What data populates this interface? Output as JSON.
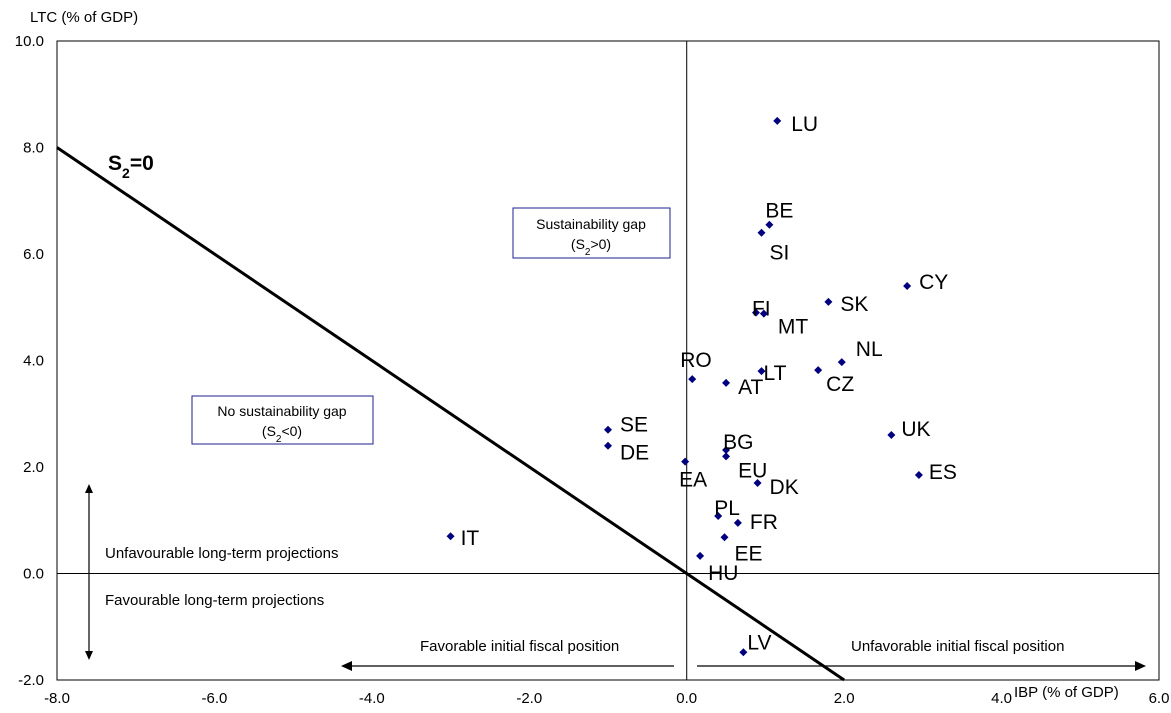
{
  "chart_data": {
    "type": "scatter",
    "xlabel": "IBP (% of GDP)",
    "ylabel": "LTC (% of GDP)",
    "xlim": [
      -8.0,
      6.0
    ],
    "ylim": [
      -2.0,
      10.0
    ],
    "xticks": [
      "-8.0",
      "-6.0",
      "-4.0",
      "-2.0",
      "0.0",
      "2.0",
      "4.0",
      "6.0"
    ],
    "yticks": [
      "-2.0",
      "0.0",
      "2.0",
      "4.0",
      "6.0",
      "8.0",
      "10.0"
    ],
    "grid": false,
    "marker_color": "#00007f",
    "points": [
      {
        "label": "LU",
        "x": 1.15,
        "y": 8.5
      },
      {
        "label": "BE",
        "x": 1.05,
        "y": 6.55
      },
      {
        "label": "SI",
        "x": 0.95,
        "y": 6.4
      },
      {
        "label": "CY",
        "x": 2.8,
        "y": 5.4
      },
      {
        "label": "SK",
        "x": 1.8,
        "y": 5.1
      },
      {
        "label": "FI",
        "x": 0.88,
        "y": 4.9
      },
      {
        "label": "MT",
        "x": 0.98,
        "y": 4.88
      },
      {
        "label": "NL",
        "x": 1.97,
        "y": 3.97
      },
      {
        "label": "CZ",
        "x": 1.67,
        "y": 3.82
      },
      {
        "label": "LT",
        "x": 0.95,
        "y": 3.8
      },
      {
        "label": "RO",
        "x": 0.07,
        "y": 3.65
      },
      {
        "label": "AT",
        "x": 0.5,
        "y": 3.58
      },
      {
        "label": "SE",
        "x": -1.0,
        "y": 2.7
      },
      {
        "label": "UK",
        "x": 2.6,
        "y": 2.6
      },
      {
        "label": "DE",
        "x": -1.0,
        "y": 2.4
      },
      {
        "label": "BG",
        "x": 0.5,
        "y": 2.32
      },
      {
        "label": "EU",
        "x": 0.5,
        "y": 2.2
      },
      {
        "label": "EA",
        "x": -0.02,
        "y": 2.1
      },
      {
        "label": "ES",
        "x": 2.95,
        "y": 1.85
      },
      {
        "label": "DK",
        "x": 0.9,
        "y": 1.7
      },
      {
        "label": "PL",
        "x": 0.4,
        "y": 1.08
      },
      {
        "label": "FR",
        "x": 0.65,
        "y": 0.95
      },
      {
        "label": "IT",
        "x": -3.0,
        "y": 0.7
      },
      {
        "label": "EE",
        "x": 0.48,
        "y": 0.68
      },
      {
        "label": "HU",
        "x": 0.17,
        "y": 0.33
      },
      {
        "label": "LV",
        "x": 0.72,
        "y": -1.48
      }
    ],
    "line": {
      "label": "S2=0",
      "x1": -8.0,
      "y1": 8.0,
      "x2": 2.0,
      "y2": -2.0
    },
    "annotations": {
      "sustainability_gap": [
        "Sustainability gap",
        "(S2>0)"
      ],
      "no_sustainability_gap": [
        "No sustainability gap",
        "(S2<0)"
      ],
      "unfavourable_projections": "Unfavourable long-term projections",
      "favourable_projections": "Favourable long-term projections",
      "favourable_fiscal": "Favorable initial fiscal position",
      "unfavourable_fiscal": "Unfavorable initial fiscal position"
    }
  }
}
